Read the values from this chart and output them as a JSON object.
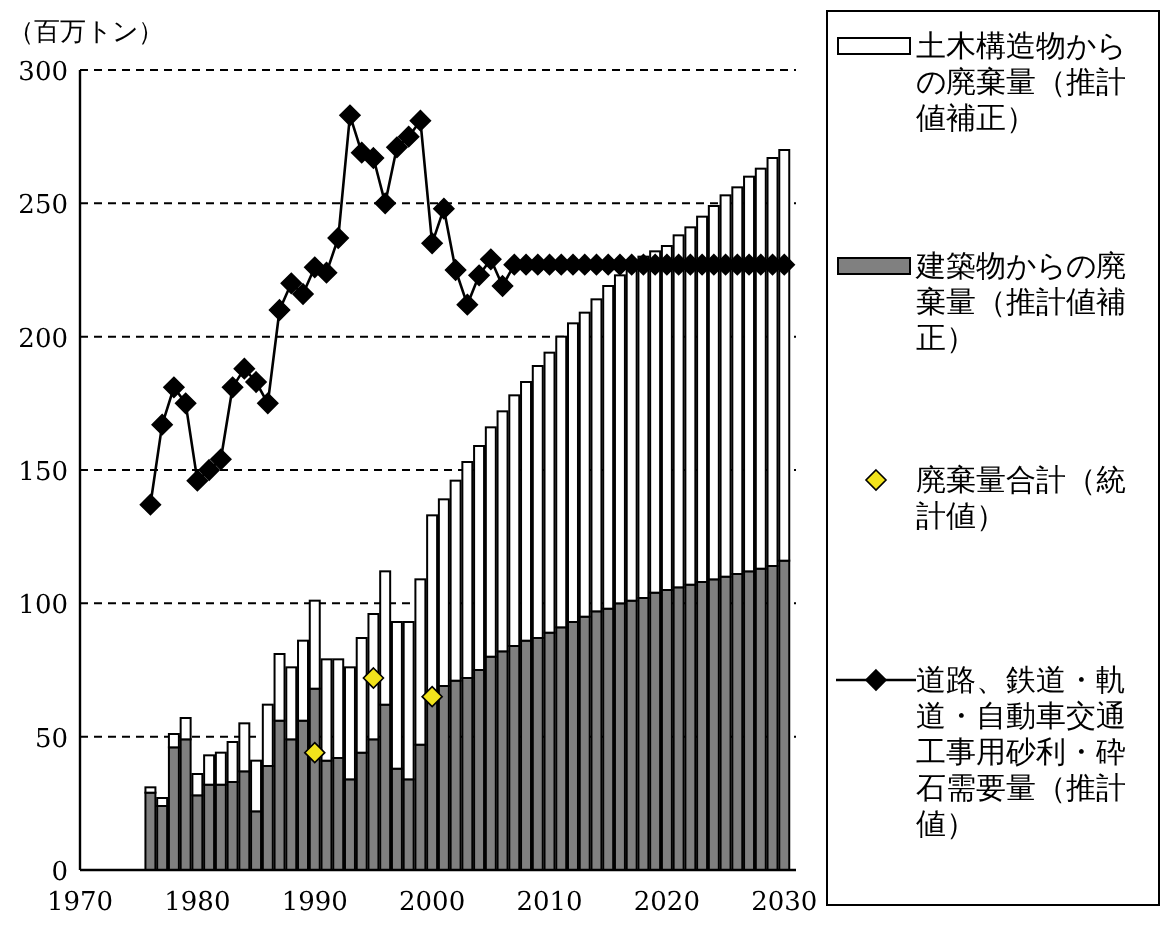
{
  "chart_data": {
    "type": "bar",
    "stacked": true,
    "ylabel": "（百万トン）",
    "x": [
      1976,
      1977,
      1978,
      1979,
      1980,
      1981,
      1982,
      1983,
      1984,
      1985,
      1986,
      1987,
      1988,
      1989,
      1990,
      1991,
      1992,
      1993,
      1994,
      1995,
      1996,
      1997,
      1998,
      1999,
      2000,
      2001,
      2002,
      2003,
      2004,
      2005,
      2006,
      2007,
      2008,
      2009,
      2010,
      2011,
      2012,
      2013,
      2014,
      2015,
      2016,
      2017,
      2018,
      2019,
      2020,
      2021,
      2022,
      2023,
      2024,
      2025,
      2026,
      2027,
      2028,
      2029,
      2030
    ],
    "xlim": [
      1970,
      2031
    ],
    "xticks": [
      1970,
      1980,
      1990,
      2000,
      2010,
      2020,
      2030
    ],
    "ylim": [
      0,
      300
    ],
    "yticks": [
      0,
      50,
      100,
      150,
      200,
      250,
      300
    ],
    "grid": "y",
    "legend": "right",
    "series": [
      {
        "name": "建築物からの廃棄量（推計値補正）",
        "color": "#808080",
        "values": [
          29,
          24,
          46,
          49,
          28,
          32,
          32,
          33,
          37,
          22,
          39,
          56,
          49,
          56,
          68,
          41,
          42,
          34,
          44,
          49,
          62,
          38,
          34,
          47,
          65,
          69,
          71,
          72,
          75,
          80,
          82,
          84,
          86,
          87,
          89,
          91,
          93,
          95,
          97,
          98,
          100,
          101,
          102,
          104,
          105,
          106,
          107,
          108,
          109,
          110,
          111,
          112,
          113,
          114,
          116
        ]
      },
      {
        "name": "土木構造物からの廃棄量（推計値補正）",
        "color": "#ffffff",
        "values": [
          2,
          3,
          5,
          8,
          8,
          11,
          12,
          15,
          18,
          19,
          23,
          25,
          27,
          30,
          33,
          38,
          37,
          42,
          43,
          47,
          50,
          55,
          59,
          62,
          68,
          70,
          75,
          81,
          84,
          86,
          90,
          94,
          97,
          102,
          105,
          109,
          112,
          114,
          117,
          121,
          123,
          125,
          128,
          128,
          129,
          132,
          134,
          137,
          140,
          143,
          145,
          148,
          150,
          153,
          154
        ]
      },
      {
        "name": "廃棄量合計（統計値）",
        "type": "scatter",
        "marker": "diamond",
        "color": "#f2e31c",
        "x": [
          1990,
          1995,
          2000
        ],
        "values": [
          44,
          72,
          65
        ]
      },
      {
        "name": "道路、鉄道・軌道・自動車交通工事用砂利・砕石需要量（推計値）",
        "type": "line",
        "marker": "diamond",
        "color": "#000000",
        "values": [
          137,
          167,
          181,
          175,
          146,
          150,
          154,
          181,
          188,
          183,
          175,
          210,
          220,
          216,
          226,
          224,
          237,
          283,
          269,
          267,
          250,
          271,
          275,
          281,
          235,
          248,
          225,
          212,
          223,
          229,
          219,
          227,
          227,
          227,
          227,
          227,
          227,
          227,
          227,
          227,
          227,
          227,
          227,
          227,
          227,
          227,
          227,
          227,
          227,
          227,
          227,
          227,
          227,
          227,
          227
        ]
      }
    ]
  }
}
